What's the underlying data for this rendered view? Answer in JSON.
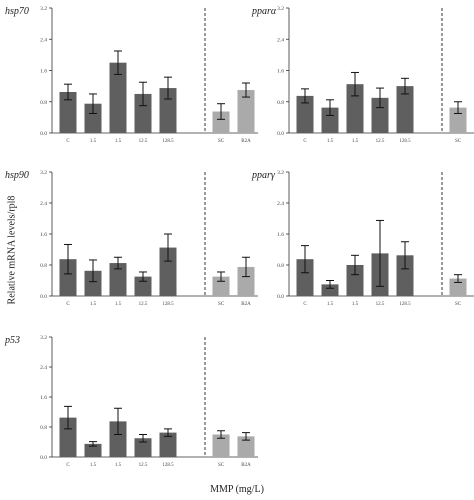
{
  "figure": {
    "ylabel": "Relative mRNA levels/rpl8",
    "xlabel": "MMP (mg/L)"
  },
  "style": {
    "dark_bar": "#5f5f5f",
    "light_bar": "#aaaaaa",
    "axis": "#333333"
  },
  "chart_data": [
    {
      "type": "bar",
      "title": "hsp70",
      "categories": [
        "C",
        "1.5",
        "1.5",
        "12.5",
        "128.5",
        "SC",
        "B2A"
      ],
      "values": [
        1.05,
        0.75,
        1.8,
        1.0,
        1.15,
        0.55,
        1.1
      ],
      "errors": [
        0.2,
        0.25,
        0.3,
        0.3,
        0.28,
        0.2,
        0.18
      ],
      "ylim": [
        0,
        3.2
      ],
      "yticks": [
        "0.0",
        "0.8",
        "1.6",
        "2.4",
        "3.2"
      ]
    },
    {
      "type": "bar",
      "title": "pparα",
      "categories": [
        "C",
        "1.5",
        "1.5",
        "12.5",
        "128.5",
        "SC",
        "B2A"
      ],
      "values": [
        0.95,
        0.65,
        1.25,
        0.9,
        1.2,
        0.65,
        0.5
      ],
      "errors": [
        0.18,
        0.2,
        0.3,
        0.25,
        0.2,
        0.15,
        0.1
      ],
      "ylim": [
        0,
        3.2
      ],
      "yticks": [
        "0.0",
        "0.8",
        "1.6",
        "2.4",
        "3.2"
      ]
    },
    {
      "type": "bar",
      "title": "hsp90",
      "categories": [
        "C",
        "1.5",
        "1.5",
        "12.5",
        "128.5",
        "SC",
        "B2A"
      ],
      "values": [
        0.95,
        0.65,
        0.85,
        0.5,
        1.25,
        0.5,
        0.75
      ],
      "errors": [
        0.38,
        0.28,
        0.15,
        0.12,
        0.35,
        0.12,
        0.25
      ],
      "ylim": [
        0,
        3.2
      ],
      "yticks": [
        "0.0",
        "0.8",
        "1.6",
        "2.4",
        "3.2"
      ]
    },
    {
      "type": "bar",
      "title": "pparγ",
      "categories": [
        "C",
        "1.5",
        "1.5",
        "12.5",
        "128.5",
        "SC",
        "B2A"
      ],
      "values": [
        0.95,
        0.3,
        0.8,
        1.1,
        1.05,
        0.45,
        0.65
      ],
      "errors": [
        0.35,
        0.1,
        0.25,
        0.85,
        0.35,
        0.1,
        0.2
      ],
      "ylim": [
        0,
        3.2
      ],
      "yticks": [
        "0.0",
        "0.8",
        "1.6",
        "2.4",
        "3.2"
      ]
    },
    {
      "type": "bar",
      "title": "p53",
      "categories": [
        "C",
        "1.5",
        "1.5",
        "12.5",
        "128.5",
        "SC",
        "B2A"
      ],
      "values": [
        1.05,
        0.35,
        0.95,
        0.5,
        0.65,
        0.6,
        0.55
      ],
      "errors": [
        0.3,
        0.06,
        0.35,
        0.1,
        0.1,
        0.1,
        0.1
      ],
      "ylim": [
        0,
        3.2
      ],
      "yticks": [
        "0.0",
        "0.8",
        "1.6",
        "2.4",
        "3.2"
      ]
    }
  ]
}
